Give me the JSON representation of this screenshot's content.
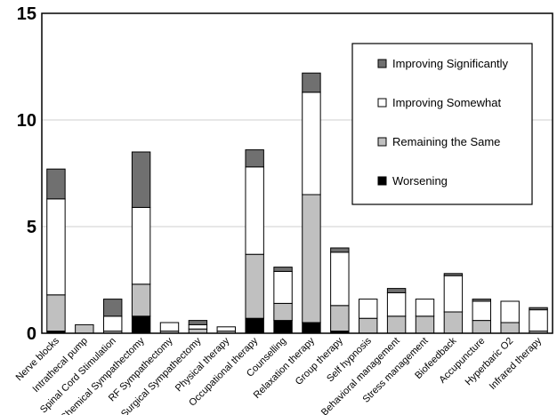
{
  "chart_data": {
    "type": "bar",
    "stacked": true,
    "ylim": [
      0,
      15
    ],
    "yticks": [
      0,
      5,
      10,
      15
    ],
    "grid": true,
    "legend_position": "top-right",
    "categories": [
      "Nerve blocks",
      "Intrathecal pump",
      "Spinal Cord Stimulation",
      "Chemical Sympathectomy",
      "RF Sympathectomy",
      "Surgical Sympathectomy",
      "Physical therapy",
      "Occupational therapy",
      "Counselling",
      "Relaxation therapy",
      "Group therapy",
      "Self hypnosis",
      "Behavioral management",
      "Stress management",
      "Biofeedback",
      "Accupuncture",
      "Hyperbaric O2",
      "Infrared therapy"
    ],
    "series": [
      {
        "name": "Worsening",
        "color": "#000000",
        "values": [
          0.1,
          0,
          0,
          0.8,
          0,
          0,
          0,
          0.7,
          0.6,
          0.5,
          0.1,
          0,
          0,
          0,
          0,
          0,
          0,
          0
        ]
      },
      {
        "name": "Remaining the Same",
        "color": "#c0c0c0",
        "values": [
          1.7,
          0.4,
          0.1,
          1.5,
          0.1,
          0.2,
          0.1,
          3.0,
          0.8,
          6.0,
          1.2,
          0.7,
          0.8,
          0.8,
          1.0,
          0.6,
          0.5,
          0.1
        ]
      },
      {
        "name": "Improving Somewhat",
        "color": "#ffffff",
        "values": [
          4.5,
          0,
          0.7,
          3.6,
          0.4,
          0.2,
          0.2,
          4.1,
          1.5,
          4.8,
          2.5,
          0.9,
          1.1,
          0.8,
          1.7,
          0.9,
          1.0,
          1.0
        ]
      },
      {
        "name": "Improving Significantly",
        "color": "#707070",
        "values": [
          1.4,
          0,
          0.8,
          2.6,
          0,
          0.2,
          0,
          0.8,
          0.2,
          0.9,
          0.2,
          0,
          0.2,
          0,
          0.1,
          0.1,
          0,
          0.1
        ]
      }
    ],
    "legend_order": [
      "Improving Significantly",
      "Improving Somewhat",
      "Remaining the Same",
      "Worsening"
    ]
  }
}
